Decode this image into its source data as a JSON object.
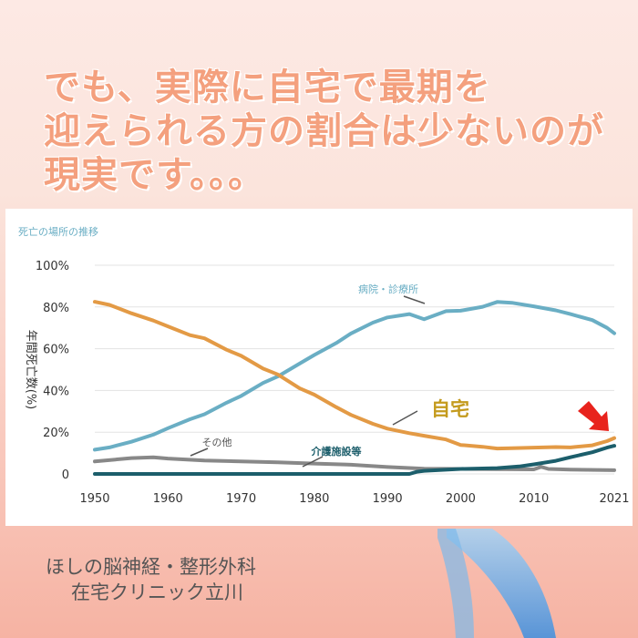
{
  "headline": {
    "line1": "でも、実際に自宅で最期を",
    "line2": "迎えられる方の割合は少ないのが",
    "line3": "現実です。。。"
  },
  "chart_data": {
    "type": "line",
    "title": "死亡の場所の推移",
    "ylabel": "年間死亡数(%)",
    "xlabel": "",
    "xlim": [
      1950,
      2021
    ],
    "ylim": [
      0,
      100
    ],
    "x_ticks": [
      "1950",
      "1960",
      "1970",
      "1980",
      "1990",
      "2000",
      "2010",
      "2021"
    ],
    "y_ticks": [
      "0",
      "20%",
      "40%",
      "60%",
      "80%",
      "100%"
    ],
    "grid": "horizontal",
    "series": [
      {
        "name": "病院・診療所",
        "color": "#6aaec4",
        "points": [
          [
            1950,
            11.6
          ],
          [
            1952,
            12.7
          ],
          [
            1955,
            15.4
          ],
          [
            1958,
            18.8
          ],
          [
            1960,
            21.9
          ],
          [
            1963,
            26.2
          ],
          [
            1965,
            28.6
          ],
          [
            1968,
            34.1
          ],
          [
            1970,
            37.4
          ],
          [
            1973,
            43.6
          ],
          [
            1975,
            46.7
          ],
          [
            1978,
            52.9
          ],
          [
            1980,
            57.0
          ],
          [
            1983,
            62.7
          ],
          [
            1985,
            67.3
          ],
          [
            1988,
            72.5
          ],
          [
            1990,
            75.0
          ],
          [
            1993,
            76.6
          ],
          [
            1995,
            74.1
          ],
          [
            1998,
            78.0
          ],
          [
            2000,
            78.2
          ],
          [
            2003,
            80.1
          ],
          [
            2005,
            82.4
          ],
          [
            2007,
            82.0
          ],
          [
            2010,
            80.3
          ],
          [
            2013,
            78.4
          ],
          [
            2015,
            76.6
          ],
          [
            2018,
            73.7
          ],
          [
            2020,
            70.0
          ],
          [
            2021,
            67.4
          ]
        ]
      },
      {
        "name": "自宅",
        "color": "#e39a45",
        "points": [
          [
            1950,
            82.5
          ],
          [
            1952,
            81.0
          ],
          [
            1955,
            77.0
          ],
          [
            1958,
            73.5
          ],
          [
            1960,
            70.7
          ],
          [
            1963,
            66.5
          ],
          [
            1965,
            65.0
          ],
          [
            1968,
            59.5
          ],
          [
            1970,
            56.6
          ],
          [
            1973,
            50.5
          ],
          [
            1975,
            47.7
          ],
          [
            1978,
            41.0
          ],
          [
            1980,
            38.0
          ],
          [
            1983,
            32.0
          ],
          [
            1985,
            28.3
          ],
          [
            1988,
            24.0
          ],
          [
            1990,
            21.7
          ],
          [
            1993,
            19.5
          ],
          [
            1995,
            18.3
          ],
          [
            1998,
            16.5
          ],
          [
            2000,
            13.9
          ],
          [
            2003,
            13.0
          ],
          [
            2005,
            12.2
          ],
          [
            2007,
            12.3
          ],
          [
            2010,
            12.6
          ],
          [
            2013,
            12.9
          ],
          [
            2015,
            12.7
          ],
          [
            2018,
            13.7
          ],
          [
            2020,
            15.7
          ],
          [
            2021,
            17.2
          ]
        ]
      },
      {
        "name": "その他",
        "color": "#888888",
        "points": [
          [
            1950,
            6.0
          ],
          [
            1955,
            7.6
          ],
          [
            1958,
            8.0
          ],
          [
            1960,
            7.4
          ],
          [
            1965,
            6.4
          ],
          [
            1970,
            6.0
          ],
          [
            1975,
            5.6
          ],
          [
            1980,
            5.0
          ],
          [
            1985,
            4.4
          ],
          [
            1990,
            3.3
          ],
          [
            1995,
            2.5
          ],
          [
            2000,
            2.4
          ],
          [
            2005,
            2.3
          ],
          [
            2010,
            2.2
          ],
          [
            2011,
            3.4
          ],
          [
            2012,
            2.4
          ],
          [
            2015,
            2.1
          ],
          [
            2021,
            1.8
          ]
        ]
      },
      {
        "name": "介護施設等",
        "color": "#1c5e6b",
        "points": [
          [
            1950,
            0
          ],
          [
            1993,
            0
          ],
          [
            1994,
            1.0
          ],
          [
            1995,
            1.5
          ],
          [
            2000,
            2.4
          ],
          [
            2005,
            2.8
          ],
          [
            2008,
            3.6
          ],
          [
            2010,
            4.6
          ],
          [
            2013,
            6.3
          ],
          [
            2015,
            8.0
          ],
          [
            2018,
            10.4
          ],
          [
            2020,
            12.6
          ],
          [
            2021,
            13.5
          ]
        ]
      }
    ]
  },
  "clinic": {
    "line1": "ほしの脳神経・整形外科",
    "line2": "在宅クリニック立川"
  }
}
